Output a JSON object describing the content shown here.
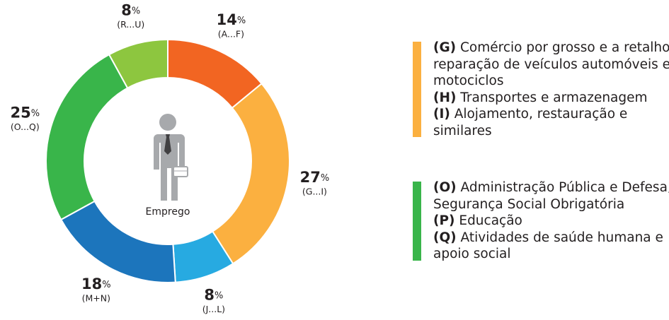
{
  "chart_data": {
    "type": "donut",
    "center_label": "Emprego",
    "categories": [
      "(A...F)",
      "(G...I)",
      "(J...L)",
      "(M+N)",
      "(O...Q)",
      "(R...U)"
    ],
    "values": [
      14,
      27,
      8,
      18,
      25,
      8
    ],
    "value_unit": "%",
    "colors": [
      "#f26522",
      "#fbb040",
      "#27aae1",
      "#1c75bc",
      "#39b54a",
      "#8dc63f"
    ]
  },
  "legend": [
    {
      "color": "#fbb040",
      "items": [
        {
          "code": "(G)",
          "text": "Comércio por grosso e a retalho; reparação de veículos automóveis e motociclos"
        },
        {
          "code": "(H)",
          "text": "Transportes e armazenagem"
        },
        {
          "code": "(I)",
          "text": "Alojamento, restauração e similares"
        }
      ]
    },
    {
      "color": "#39b54a",
      "items": [
        {
          "code": "(O)",
          "text": "Administração Pública e Defesa; Segurança Social Obrigatória"
        },
        {
          "code": "(P)",
          "text": "Educação"
        },
        {
          "code": "(Q)",
          "text": "Atividades de saúde humana e apoio social"
        }
      ]
    }
  ]
}
